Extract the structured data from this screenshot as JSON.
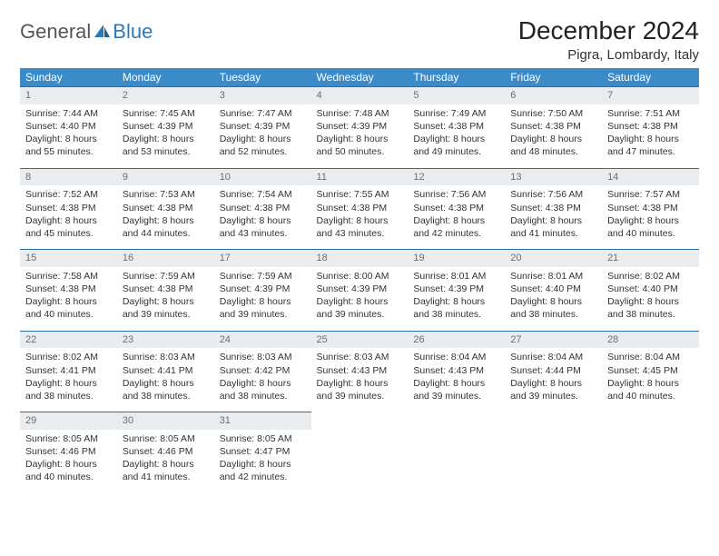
{
  "logo": {
    "text1": "General",
    "text2": "Blue"
  },
  "title": "December 2024",
  "location": "Pigra, Lombardy, Italy",
  "colors": {
    "header_bg": "#3b8bc9",
    "header_text": "#ffffff",
    "daynum_bg": "#e9edf0",
    "daynum_text": "#6a6f73",
    "row_border": "#2a6fa3",
    "brand_accent": "#2a7ab8"
  },
  "weekdays": [
    "Sunday",
    "Monday",
    "Tuesday",
    "Wednesday",
    "Thursday",
    "Friday",
    "Saturday"
  ],
  "weeks": [
    [
      {
        "n": "1",
        "sr": "7:44 AM",
        "ss": "4:40 PM",
        "dl": "8 hours and 55 minutes."
      },
      {
        "n": "2",
        "sr": "7:45 AM",
        "ss": "4:39 PM",
        "dl": "8 hours and 53 minutes."
      },
      {
        "n": "3",
        "sr": "7:47 AM",
        "ss": "4:39 PM",
        "dl": "8 hours and 52 minutes."
      },
      {
        "n": "4",
        "sr": "7:48 AM",
        "ss": "4:39 PM",
        "dl": "8 hours and 50 minutes."
      },
      {
        "n": "5",
        "sr": "7:49 AM",
        "ss": "4:38 PM",
        "dl": "8 hours and 49 minutes."
      },
      {
        "n": "6",
        "sr": "7:50 AM",
        "ss": "4:38 PM",
        "dl": "8 hours and 48 minutes."
      },
      {
        "n": "7",
        "sr": "7:51 AM",
        "ss": "4:38 PM",
        "dl": "8 hours and 47 minutes."
      }
    ],
    [
      {
        "n": "8",
        "sr": "7:52 AM",
        "ss": "4:38 PM",
        "dl": "8 hours and 45 minutes."
      },
      {
        "n": "9",
        "sr": "7:53 AM",
        "ss": "4:38 PM",
        "dl": "8 hours and 44 minutes."
      },
      {
        "n": "10",
        "sr": "7:54 AM",
        "ss": "4:38 PM",
        "dl": "8 hours and 43 minutes."
      },
      {
        "n": "11",
        "sr": "7:55 AM",
        "ss": "4:38 PM",
        "dl": "8 hours and 43 minutes."
      },
      {
        "n": "12",
        "sr": "7:56 AM",
        "ss": "4:38 PM",
        "dl": "8 hours and 42 minutes."
      },
      {
        "n": "13",
        "sr": "7:56 AM",
        "ss": "4:38 PM",
        "dl": "8 hours and 41 minutes."
      },
      {
        "n": "14",
        "sr": "7:57 AM",
        "ss": "4:38 PM",
        "dl": "8 hours and 40 minutes."
      }
    ],
    [
      {
        "n": "15",
        "sr": "7:58 AM",
        "ss": "4:38 PM",
        "dl": "8 hours and 40 minutes."
      },
      {
        "n": "16",
        "sr": "7:59 AM",
        "ss": "4:38 PM",
        "dl": "8 hours and 39 minutes."
      },
      {
        "n": "17",
        "sr": "7:59 AM",
        "ss": "4:39 PM",
        "dl": "8 hours and 39 minutes."
      },
      {
        "n": "18",
        "sr": "8:00 AM",
        "ss": "4:39 PM",
        "dl": "8 hours and 39 minutes."
      },
      {
        "n": "19",
        "sr": "8:01 AM",
        "ss": "4:39 PM",
        "dl": "8 hours and 38 minutes."
      },
      {
        "n": "20",
        "sr": "8:01 AM",
        "ss": "4:40 PM",
        "dl": "8 hours and 38 minutes."
      },
      {
        "n": "21",
        "sr": "8:02 AM",
        "ss": "4:40 PM",
        "dl": "8 hours and 38 minutes."
      }
    ],
    [
      {
        "n": "22",
        "sr": "8:02 AM",
        "ss": "4:41 PM",
        "dl": "8 hours and 38 minutes."
      },
      {
        "n": "23",
        "sr": "8:03 AM",
        "ss": "4:41 PM",
        "dl": "8 hours and 38 minutes."
      },
      {
        "n": "24",
        "sr": "8:03 AM",
        "ss": "4:42 PM",
        "dl": "8 hours and 38 minutes."
      },
      {
        "n": "25",
        "sr": "8:03 AM",
        "ss": "4:43 PM",
        "dl": "8 hours and 39 minutes."
      },
      {
        "n": "26",
        "sr": "8:04 AM",
        "ss": "4:43 PM",
        "dl": "8 hours and 39 minutes."
      },
      {
        "n": "27",
        "sr": "8:04 AM",
        "ss": "4:44 PM",
        "dl": "8 hours and 39 minutes."
      },
      {
        "n": "28",
        "sr": "8:04 AM",
        "ss": "4:45 PM",
        "dl": "8 hours and 40 minutes."
      }
    ],
    [
      {
        "n": "29",
        "sr": "8:05 AM",
        "ss": "4:46 PM",
        "dl": "8 hours and 40 minutes."
      },
      {
        "n": "30",
        "sr": "8:05 AM",
        "ss": "4:46 PM",
        "dl": "8 hours and 41 minutes."
      },
      {
        "n": "31",
        "sr": "8:05 AM",
        "ss": "4:47 PM",
        "dl": "8 hours and 42 minutes."
      },
      null,
      null,
      null,
      null
    ]
  ],
  "labels": {
    "sunrise": "Sunrise: ",
    "sunset": "Sunset: ",
    "daylight": "Daylight: "
  }
}
